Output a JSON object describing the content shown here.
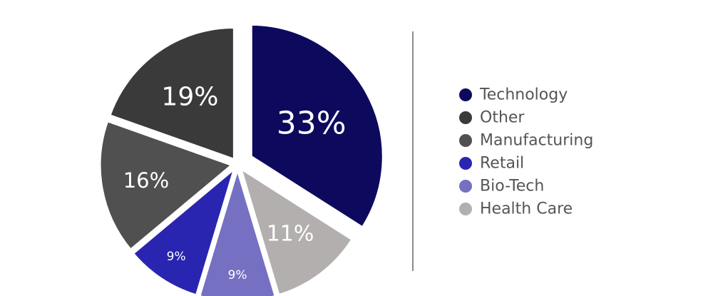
{
  "chart_data": {
    "type": "pie",
    "title": "",
    "slices": [
      {
        "label": "Technology",
        "value": 33,
        "display": "33%",
        "color": "#0d0a5e"
      },
      {
        "label": "Health Care",
        "value": 11,
        "display": "11%",
        "color": "#b4afaf"
      },
      {
        "label": "Bio-Tech",
        "value": 9,
        "display": "9%",
        "color": "#7570c2"
      },
      {
        "label": "Retail",
        "value": 9,
        "display": "9%",
        "color": "#2a25b0"
      },
      {
        "label": "Manufacturing",
        "value": 16,
        "display": "16%",
        "color": "#505050"
      },
      {
        "label": "Other",
        "value": 19,
        "display": "19%",
        "color": "#3a3a3a"
      }
    ],
    "legend": {
      "position": "right",
      "entries": [
        {
          "label": "Technology",
          "color": "#0d0a5e"
        },
        {
          "label": "Other",
          "color": "#3a3a3a"
        },
        {
          "label": "Manufacturing",
          "color": "#505050"
        },
        {
          "label": "Retail",
          "color": "#2a25b0"
        },
        {
          "label": "Bio-Tech",
          "color": "#7570c2"
        },
        {
          "label": "Health Care",
          "color": "#b4afaf"
        }
      ]
    }
  }
}
